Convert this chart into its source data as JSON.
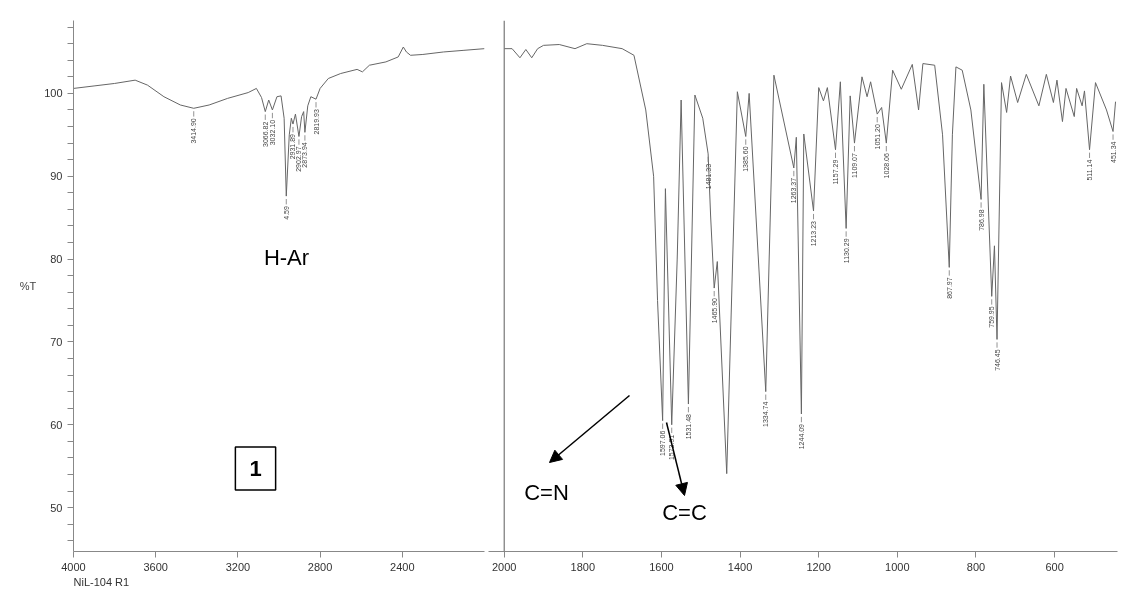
{
  "chart_data": [
    {
      "type": "line",
      "ylabel": "%T",
      "xlim": [
        4000,
        2000
      ],
      "ylim": [
        44.7,
        108.8
      ],
      "xticks": [
        4000,
        3600,
        3200,
        2800,
        2400
      ],
      "yticks": [
        {
          "value": 46,
          "label": null
        },
        {
          "value": 48,
          "label": null
        },
        50,
        {
          "value": 52,
          "label": null
        },
        {
          "value": 54,
          "label": null
        },
        {
          "value": 56,
          "label": null
        },
        {
          "value": 58,
          "label": null
        },
        60,
        {
          "value": 62,
          "label": null
        },
        {
          "value": 64,
          "label": null
        },
        {
          "value": 66,
          "label": null
        },
        {
          "value": 68,
          "label": null
        },
        70,
        {
          "value": 72,
          "label": null
        },
        {
          "value": 74,
          "label": null
        },
        {
          "value": 76,
          "label": null
        },
        {
          "value": 78,
          "label": null
        },
        80,
        {
          "value": 82,
          "label": null
        },
        {
          "value": 84,
          "label": null
        },
        {
          "value": 86,
          "label": null
        },
        {
          "value": 88,
          "label": null
        },
        90,
        {
          "value": 92,
          "label": null
        },
        {
          "value": 94,
          "label": null
        },
        {
          "value": 96,
          "label": null
        },
        {
          "value": 98,
          "label": null
        },
        100,
        {
          "value": 102,
          "label": null
        },
        {
          "value": 104,
          "label": null
        },
        {
          "value": 106,
          "label": null
        },
        {
          "value": 108,
          "label": null
        }
      ],
      "grid": false,
      "marker": "none",
      "line_style": "solid",
      "annotations": [
        "H-Ar",
        "1",
        "NiL-104 R1",
        {
          "text": "3414.90",
          "x": 3414.9,
          "y": 98.2
        },
        {
          "text": "3066.82",
          "x": 3066.82,
          "y": 97.8
        },
        {
          "text": "3032.10",
          "x": 3032.1,
          "y": 98.0
        },
        {
          "text": "4.59",
          "x": 2964.59,
          "y": 87.6
        },
        {
          "text": "2931.89",
          "x": 2931.89,
          "y": 96.3
        },
        {
          "text": "2902.97",
          "x": 2902.97,
          "y": 94.8
        },
        {
          "text": "2873.94",
          "x": 2873.94,
          "y": 95.3
        },
        {
          "text": "2819.93",
          "x": 2819.93,
          "y": 99.3
        }
      ],
      "series": [
        {
          "color": "#666666",
          "x": [
            4000,
            3900,
            3800,
            3700,
            3640,
            3560,
            3480,
            3414.9,
            3340,
            3250,
            3150,
            3110,
            3085,
            3066.82,
            3050,
            3032.1,
            3010,
            2990,
            2975,
            2964.59,
            2950,
            2940,
            2931.89,
            2920,
            2902.97,
            2890,
            2880,
            2873.94,
            2860,
            2845,
            2819.93,
            2800,
            2760,
            2700,
            2620,
            2594,
            2560,
            2480,
            2420,
            2395,
            2380,
            2360,
            2300,
            2200,
            2100,
            2000
          ],
          "values": [
            100.6,
            100.9,
            101.2,
            101.6,
            101.0,
            99.6,
            98.6,
            98.2,
            98.6,
            99.4,
            100.1,
            100.6,
            99.5,
            97.8,
            99.2,
            98.0,
            99.6,
            99.7,
            97.0,
            87.6,
            95.0,
            97.0,
            96.3,
            97.5,
            94.8,
            97.2,
            97.8,
            95.3,
            98.5,
            99.6,
            99.3,
            100.6,
            101.8,
            102.4,
            102.9,
            102.6,
            103.4,
            103.8,
            104.4,
            105.6,
            105.0,
            104.6,
            104.7,
            105.0,
            105.2,
            105.4
          ]
        }
      ]
    },
    {
      "type": "line",
      "xlim": [
        2040,
        440
      ],
      "ylim": [
        44.7,
        108.8
      ],
      "tick_labels": "x",
      "xticks": [
        2000,
        1800,
        1600,
        1400,
        1200,
        1000,
        800,
        600
      ],
      "grid": false,
      "marker": "none",
      "line_style": "solid",
      "ref_lines": [
        {
          "axis": "x",
          "value": 2000,
          "label": null,
          "color": "#777777"
        }
      ],
      "annotations": [
        "C=N",
        "C=C",
        {
          "text": "1597.06",
          "x": 1597.06,
          "y": 60.5
        },
        {
          "text": "1573.91",
          "x": 1573.91,
          "y": 60.0
        },
        {
          "text": "1531.48",
          "x": 1531.48,
          "y": 62.5
        },
        {
          "text": "1481.33",
          "x": 1481.33,
          "y": 92.7
        },
        {
          "text": "1465.90",
          "x": 1465.9,
          "y": 76.5
        },
        {
          "text": "1385.60",
          "x": 1385.6,
          "y": 94.8
        },
        {
          "text": "1334.74",
          "x": 1334.74,
          "y": 64
        },
        {
          "text": "1263.37",
          "x": 1263.37,
          "y": 91.0
        },
        {
          "text": "1244.09",
          "x": 1244.09,
          "y": 61.3
        },
        {
          "text": "1213.23",
          "x": 1213.23,
          "y": 85.8
        },
        {
          "text": "1157.29",
          "x": 1157.29,
          "y": 93.2
        },
        {
          "text": "1130.29",
          "x": 1130.29,
          "y": 83.7
        },
        {
          "text": "1109.07",
          "x": 1109.07,
          "y": 94.0
        },
        {
          "text": "1051.20",
          "x": 1051.2,
          "y": 97.5
        },
        {
          "text": "1028.06",
          "x": 1028.06,
          "y": 94.0
        },
        {
          "text": "867.97",
          "x": 867.97,
          "y": 79
        },
        {
          "text": "786.98",
          "x": 786.98,
          "y": 87.2
        },
        {
          "text": "759.95",
          "x": 759.95,
          "y": 75.5
        },
        {
          "text": "746.45",
          "x": 746.45,
          "y": 70.3
        },
        {
          "text": "511.14",
          "x": 511.14,
          "y": 93.2
        },
        {
          "text": "451.34",
          "x": 451.34,
          "y": 95.4
        }
      ],
      "series": [
        {
          "color": "#666666",
          "x": [
            2000,
            1980,
            1960,
            1945,
            1930,
            1915,
            1900,
            1860,
            1820,
            1790,
            1750,
            1700,
            1670,
            1640,
            1620,
            1610,
            1597.06,
            1590,
            1573.91,
            1560,
            1550,
            1531.48,
            1515,
            1495,
            1481.33,
            1475,
            1465.9,
            1458,
            1434,
            1407,
            1385.6,
            1377,
            1334.74,
            1314,
            1263.37,
            1257,
            1244.09,
            1238,
            1213.23,
            1200,
            1188,
            1178,
            1157.29,
            1145,
            1130.29,
            1120,
            1109.07,
            1090,
            1077,
            1068,
            1051.2,
            1040,
            1028.06,
            1012,
            990,
            962,
            946,
            935,
            905,
            885,
            867.97,
            860,
            851,
            835,
            813,
            786.98,
            780,
            759.95,
            753,
            746.45,
            735,
            722,
            712,
            694,
            672,
            640,
            621,
            603,
            594,
            580,
            571,
            550,
            544,
            530,
            524,
            511.14,
            496,
            468,
            451.34,
            445
          ],
          "values": [
            105.4,
            105.4,
            104.3,
            105.3,
            104.3,
            105.4,
            105.8,
            105.9,
            105.4,
            106.0,
            105.8,
            105.4,
            104.6,
            98,
            90,
            75,
            60.5,
            88.5,
            60.0,
            80,
            99.2,
            62.5,
            99.8,
            97,
            92.7,
            85.2,
            76.5,
            79.7,
            54.1,
            100.2,
            94.8,
            100,
            64,
            102.2,
            91.0,
            94.7,
            61.3,
            95.1,
            85.8,
            100.7,
            99.1,
            100.7,
            93.2,
            101.4,
            83.7,
            99.7,
            94.0,
            102.0,
            99.6,
            101.4,
            97.5,
            98.3,
            94.0,
            102.8,
            100.5,
            103.5,
            98.0,
            103.6,
            103.4,
            95,
            79,
            95,
            103.2,
            102.8,
            98,
            87.2,
            101.1,
            75.5,
            81.6,
            70.3,
            101.3,
            97.7,
            102.1,
            98.9,
            102.3,
            98.5,
            102.3,
            98.9,
            101.6,
            96.6,
            100.6,
            97.2,
            100.6,
            98.5,
            100.3,
            93.2,
            101.3,
            98.0,
            95.4,
            99.0
          ]
        }
      ]
    }
  ]
}
